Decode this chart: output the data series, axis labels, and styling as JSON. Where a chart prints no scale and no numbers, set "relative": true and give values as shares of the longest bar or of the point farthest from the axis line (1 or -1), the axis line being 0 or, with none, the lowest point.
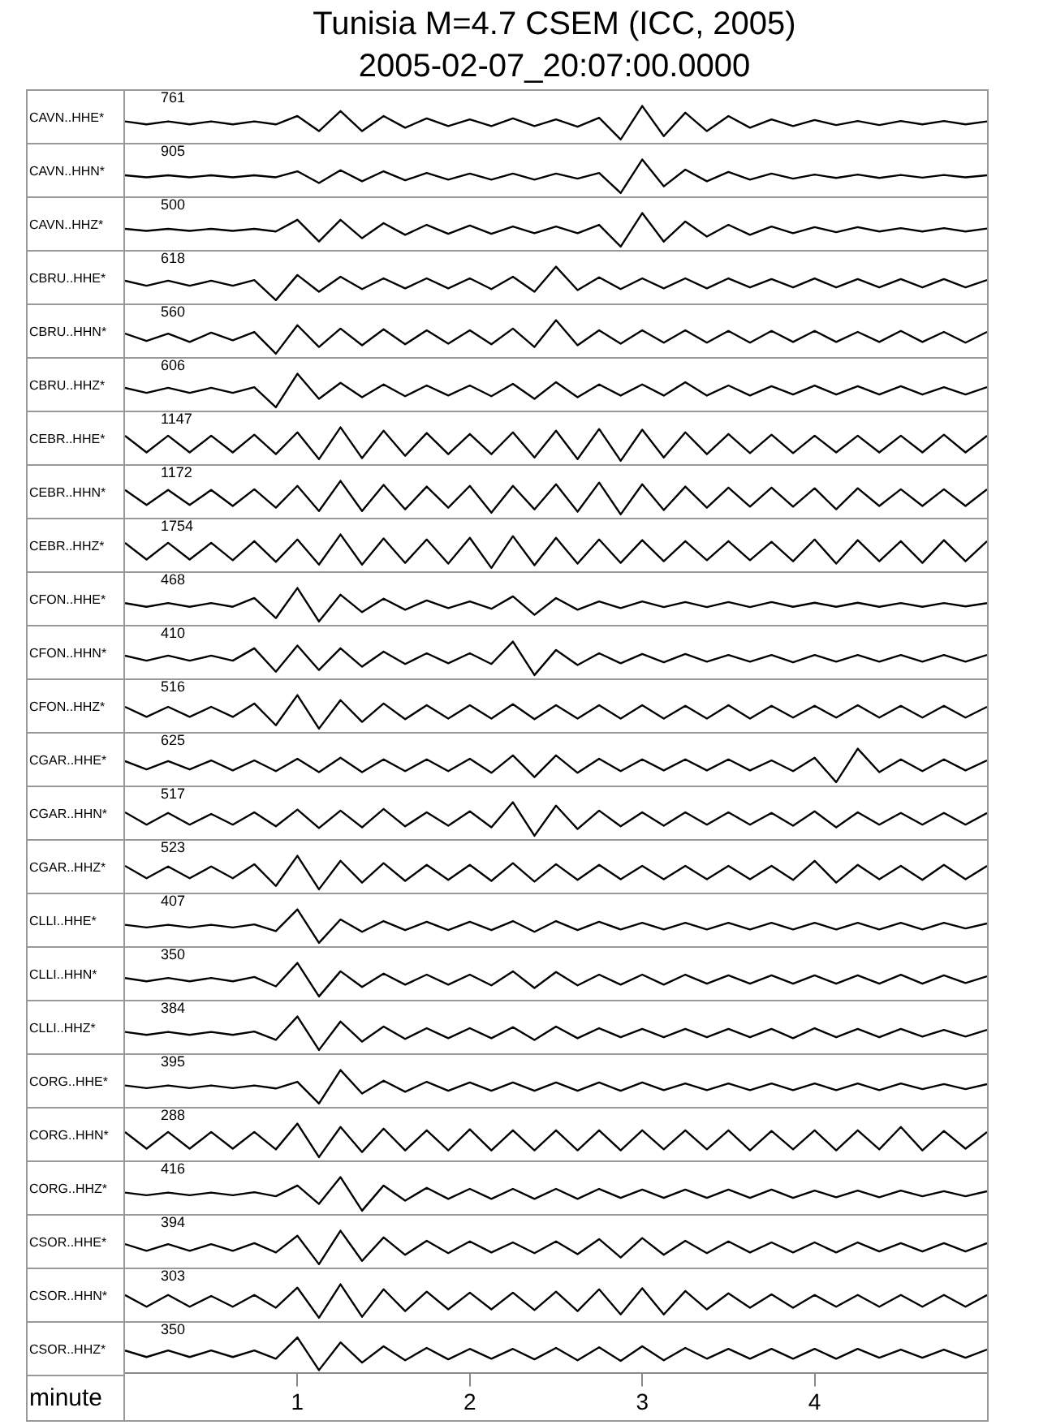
{
  "chart_data": [
    {
      "type": "line",
      "title": "Tunisia M=4.7 CSEM (ICC, 2005)",
      "subtitle": "2005-02-07_20:07:00.0000",
      "ylabel": "CAVN..HHE*",
      "annotations": [
        "761"
      ],
      "relative": true,
      "tick_labels": false,
      "color": "#000000",
      "categories": [
        null,
        null,
        null,
        null,
        null,
        null,
        null,
        null,
        null,
        null,
        null,
        null,
        null,
        null,
        null,
        null,
        null,
        null,
        null,
        null,
        null,
        null,
        null,
        null,
        null,
        null,
        null,
        null,
        null,
        null,
        null,
        null,
        null,
        null,
        null,
        null,
        null,
        null,
        null,
        null,
        null
      ],
      "values": [
        0.54,
        0.45,
        0.54,
        0.45,
        0.54,
        0.45,
        0.54,
        0.45,
        0.7,
        0.25,
        0.85,
        0.25,
        0.7,
        0.35,
        0.63,
        0.4,
        0.6,
        0.4,
        0.63,
        0.4,
        0.6,
        0.38,
        0.65,
        0,
        1,
        0.1,
        0.8,
        0.25,
        0.7,
        0.35,
        0.6,
        0.4,
        0.58,
        0.43,
        0.55,
        0.43,
        0.55,
        0.45,
        0.55,
        0.45,
        0.54
      ]
    },
    {
      "type": "line",
      "ylabel": "CAVN..HHN*",
      "annotations": [
        "905"
      ],
      "relative": true,
      "tick_labels": false,
      "color": "#000000",
      "categories": [
        null,
        null,
        null,
        null,
        null,
        null,
        null,
        null,
        null,
        null,
        null,
        null,
        null,
        null,
        null,
        null,
        null,
        null,
        null,
        null,
        null,
        null,
        null,
        null,
        null,
        null,
        null,
        null,
        null,
        null,
        null,
        null,
        null,
        null,
        null,
        null,
        null,
        null,
        null,
        null,
        null
      ],
      "values": [
        0.53,
        0.47,
        0.53,
        0.47,
        0.53,
        0.47,
        0.53,
        0.47,
        0.65,
        0.3,
        0.68,
        0.35,
        0.65,
        0.38,
        0.6,
        0.4,
        0.58,
        0.4,
        0.58,
        0.4,
        0.58,
        0.43,
        0.6,
        0,
        1,
        0.2,
        0.7,
        0.35,
        0.63,
        0.4,
        0.58,
        0.43,
        0.55,
        0.45,
        0.55,
        0.45,
        0.54,
        0.46,
        0.54,
        0.47,
        0.53
      ]
    },
    {
      "type": "line",
      "ylabel": "CAVN..HHZ*",
      "annotations": [
        "500"
      ],
      "relative": true,
      "tick_labels": false,
      "color": "#000000",
      "categories": [
        null,
        null,
        null,
        null,
        null,
        null,
        null,
        null,
        null,
        null,
        null,
        null,
        null,
        null,
        null,
        null,
        null,
        null,
        null,
        null,
        null,
        null,
        null,
        null,
        null,
        null,
        null,
        null,
        null,
        null,
        null,
        null,
        null,
        null,
        null,
        null,
        null,
        null,
        null,
        null,
        null
      ],
      "values": [
        0.53,
        0.47,
        0.53,
        0.47,
        0.53,
        0.47,
        0.53,
        0.45,
        0.8,
        0.15,
        0.8,
        0.25,
        0.7,
        0.35,
        0.65,
        0.38,
        0.63,
        0.38,
        0.6,
        0.4,
        0.6,
        0.4,
        0.65,
        0,
        1,
        0.15,
        0.75,
        0.3,
        0.65,
        0.35,
        0.6,
        0.4,
        0.58,
        0.43,
        0.58,
        0.45,
        0.55,
        0.45,
        0.55,
        0.45,
        0.54
      ]
    },
    {
      "type": "line",
      "ylabel": "CBRU..HHE*",
      "annotations": [
        "618"
      ],
      "relative": true,
      "tick_labels": false,
      "color": "#000000",
      "categories": [
        null,
        null,
        null,
        null,
        null,
        null,
        null,
        null,
        null,
        null,
        null,
        null,
        null,
        null,
        null,
        null,
        null,
        null,
        null,
        null,
        null,
        null,
        null,
        null,
        null,
        null,
        null,
        null,
        null,
        null,
        null,
        null,
        null,
        null,
        null,
        null,
        null,
        null,
        null,
        null,
        null
      ],
      "values": [
        0.58,
        0.43,
        0.58,
        0.43,
        0.58,
        0.43,
        0.6,
        0,
        0.75,
        0.25,
        0.7,
        0.33,
        0.65,
        0.35,
        0.65,
        0.35,
        0.65,
        0.33,
        0.7,
        0.25,
        1,
        0.3,
        0.68,
        0.33,
        0.65,
        0.35,
        0.65,
        0.35,
        0.65,
        0.38,
        0.63,
        0.38,
        0.65,
        0.38,
        0.63,
        0.38,
        0.63,
        0.38,
        0.63,
        0.38,
        0.6
      ]
    },
    {
      "type": "line",
      "ylabel": "CBRU..HHN*",
      "annotations": [
        "560"
      ],
      "relative": true,
      "tick_labels": false,
      "color": "#000000",
      "categories": [
        null,
        null,
        null,
        null,
        null,
        null,
        null,
        null,
        null,
        null,
        null,
        null,
        null,
        null,
        null,
        null,
        null,
        null,
        null,
        null,
        null,
        null,
        null,
        null,
        null,
        null,
        null,
        null,
        null,
        null,
        null,
        null,
        null,
        null,
        null,
        null,
        null,
        null,
        null,
        null,
        null
      ],
      "values": [
        0.6,
        0.38,
        0.6,
        0.35,
        0.63,
        0.4,
        0.65,
        0,
        0.85,
        0.2,
        0.75,
        0.25,
        0.73,
        0.28,
        0.7,
        0.3,
        0.7,
        0.28,
        0.75,
        0.2,
        1,
        0.25,
        0.7,
        0.3,
        0.7,
        0.33,
        0.7,
        0.33,
        0.68,
        0.33,
        0.68,
        0.35,
        0.68,
        0.35,
        0.65,
        0.35,
        0.68,
        0.35,
        0.65,
        0.33,
        0.65
      ]
    },
    {
      "type": "line",
      "ylabel": "CBRU..HHZ*",
      "annotations": [
        "606"
      ],
      "relative": true,
      "tick_labels": false,
      "color": "#000000",
      "categories": [
        null,
        null,
        null,
        null,
        null,
        null,
        null,
        null,
        null,
        null,
        null,
        null,
        null,
        null,
        null,
        null,
        null,
        null,
        null,
        null,
        null,
        null,
        null,
        null,
        null,
        null,
        null,
        null,
        null,
        null,
        null,
        null,
        null,
        null,
        null,
        null,
        null,
        null,
        null,
        null,
        null
      ],
      "values": [
        0.58,
        0.43,
        0.58,
        0.43,
        0.58,
        0.43,
        0.6,
        0,
        1,
        0.25,
        0.73,
        0.3,
        0.68,
        0.33,
        0.65,
        0.35,
        0.65,
        0.33,
        0.7,
        0.25,
        0.75,
        0.3,
        0.68,
        0.35,
        0.68,
        0.35,
        0.75,
        0.35,
        0.65,
        0.35,
        0.63,
        0.38,
        0.65,
        0.38,
        0.63,
        0.38,
        0.63,
        0.38,
        0.6,
        0.38,
        0.6
      ]
    },
    {
      "type": "line",
      "ylabel": "CEBR..HHE*",
      "annotations": [
        "1147"
      ],
      "relative": true,
      "tick_labels": false,
      "color": "#000000",
      "categories": [
        null,
        null,
        null,
        null,
        null,
        null,
        null,
        null,
        null,
        null,
        null,
        null,
        null,
        null,
        null,
        null,
        null,
        null,
        null,
        null,
        null,
        null,
        null,
        null,
        null,
        null,
        null,
        null,
        null,
        null,
        null,
        null,
        null,
        null,
        null,
        null,
        null,
        null,
        null,
        null,
        null
      ],
      "values": [
        0.75,
        0.25,
        0.75,
        0.25,
        0.75,
        0.25,
        0.78,
        0.2,
        0.85,
        0.05,
        1,
        0.08,
        0.9,
        0.15,
        0.83,
        0.2,
        0.8,
        0.2,
        0.85,
        0.1,
        0.9,
        0.05,
        0.95,
        0,
        0.93,
        0.1,
        0.85,
        0.2,
        0.8,
        0.23,
        0.78,
        0.23,
        0.75,
        0.25,
        0.75,
        0.25,
        0.75,
        0.25,
        0.78,
        0.25,
        0.75
      ]
    },
    {
      "type": "line",
      "ylabel": "CEBR..HHN*",
      "annotations": [
        "1172"
      ],
      "relative": true,
      "tick_labels": false,
      "color": "#000000",
      "categories": [
        null,
        null,
        null,
        null,
        null,
        null,
        null,
        null,
        null,
        null,
        null,
        null,
        null,
        null,
        null,
        null,
        null,
        null,
        null,
        null,
        null,
        null,
        null,
        null,
        null,
        null,
        null,
        null,
        null,
        null,
        null,
        null,
        null,
        null,
        null,
        null,
        null,
        null,
        null,
        null,
        null
      ],
      "values": [
        0.73,
        0.28,
        0.73,
        0.28,
        0.73,
        0.25,
        0.75,
        0.2,
        0.85,
        0.1,
        1,
        0.1,
        0.88,
        0.15,
        0.83,
        0.2,
        0.85,
        0.05,
        0.85,
        0.15,
        0.9,
        0.08,
        0.95,
        0,
        0.9,
        0.13,
        0.83,
        0.2,
        0.8,
        0.23,
        0.8,
        0.23,
        0.78,
        0.15,
        0.78,
        0.25,
        0.75,
        0.25,
        0.75,
        0.25,
        0.75
      ]
    },
    {
      "type": "line",
      "ylabel": "CEBR..HHZ*",
      "annotations": [
        "1754"
      ],
      "relative": true,
      "tick_labels": false,
      "color": "#000000",
      "categories": [
        null,
        null,
        null,
        null,
        null,
        null,
        null,
        null,
        null,
        null,
        null,
        null,
        null,
        null,
        null,
        null,
        null,
        null,
        null,
        null,
        null,
        null,
        null,
        null,
        null,
        null,
        null,
        null,
        null,
        null,
        null,
        null,
        null,
        null,
        null,
        null,
        null,
        null,
        null,
        null,
        null
      ],
      "values": [
        0.75,
        0.25,
        0.75,
        0.25,
        0.75,
        0.23,
        0.8,
        0.18,
        0.85,
        0.1,
        1,
        0.1,
        0.88,
        0.15,
        0.85,
        0.13,
        0.9,
        0,
        0.95,
        0.08,
        0.9,
        0.13,
        0.85,
        0.15,
        0.83,
        0.2,
        0.8,
        0.23,
        0.8,
        0.23,
        0.78,
        0.2,
        0.85,
        0.13,
        0.83,
        0.2,
        0.8,
        0.15,
        0.83,
        0.2,
        0.8
      ]
    },
    {
      "type": "line",
      "ylabel": "CFON..HHE*",
      "annotations": [
        "468"
      ],
      "relative": true,
      "tick_labels": false,
      "color": "#000000",
      "categories": [
        null,
        null,
        null,
        null,
        null,
        null,
        null,
        null,
        null,
        null,
        null,
        null,
        null,
        null,
        null,
        null,
        null,
        null,
        null,
        null,
        null,
        null,
        null,
        null,
        null,
        null,
        null,
        null,
        null,
        null,
        null,
        null,
        null,
        null,
        null,
        null,
        null,
        null,
        null,
        null,
        null
      ],
      "values": [
        0.55,
        0.44,
        0.55,
        0.44,
        0.55,
        0.44,
        0.7,
        0.1,
        1,
        0,
        0.8,
        0.28,
        0.68,
        0.35,
        0.63,
        0.4,
        0.6,
        0.38,
        0.75,
        0.2,
        0.7,
        0.35,
        0.6,
        0.4,
        0.6,
        0.43,
        0.58,
        0.43,
        0.58,
        0.43,
        0.58,
        0.44,
        0.56,
        0.44,
        0.56,
        0.44,
        0.55,
        0.44,
        0.55,
        0.45,
        0.55
      ]
    },
    {
      "type": "line",
      "ylabel": "CFON..HHN*",
      "annotations": [
        "410"
      ],
      "relative": true,
      "tick_labels": false,
      "color": "#000000",
      "categories": [
        null,
        null,
        null,
        null,
        null,
        null,
        null,
        null,
        null,
        null,
        null,
        null,
        null,
        null,
        null,
        null,
        null,
        null,
        null,
        null,
        null,
        null,
        null,
        null,
        null,
        null,
        null,
        null,
        null,
        null,
        null,
        null,
        null,
        null,
        null,
        null,
        null,
        null,
        null,
        null,
        null
      ],
      "values": [
        0.58,
        0.43,
        0.58,
        0.43,
        0.58,
        0.43,
        0.8,
        0.1,
        0.88,
        0.15,
        0.8,
        0.25,
        0.7,
        0.33,
        0.65,
        0.35,
        0.65,
        0.33,
        1,
        0,
        0.75,
        0.3,
        0.65,
        0.35,
        0.63,
        0.38,
        0.63,
        0.4,
        0.6,
        0.4,
        0.6,
        0.38,
        0.6,
        0.4,
        0.6,
        0.4,
        0.6,
        0.4,
        0.6,
        0.4,
        0.6
      ]
    },
    {
      "type": "line",
      "ylabel": "CFON..HHZ*",
      "annotations": [
        "516"
      ],
      "relative": true,
      "tick_labels": false,
      "color": "#000000",
      "categories": [
        null,
        null,
        null,
        null,
        null,
        null,
        null,
        null,
        null,
        null,
        null,
        null,
        null,
        null,
        null,
        null,
        null,
        null,
        null,
        null,
        null,
        null,
        null,
        null,
        null,
        null,
        null,
        null,
        null,
        null,
        null,
        null,
        null,
        null,
        null,
        null,
        null,
        null,
        null,
        null,
        null
      ],
      "values": [
        0.65,
        0.35,
        0.65,
        0.35,
        0.65,
        0.35,
        0.75,
        0.1,
        1,
        0,
        0.85,
        0.2,
        0.75,
        0.28,
        0.7,
        0.3,
        0.7,
        0.3,
        0.73,
        0.28,
        0.7,
        0.3,
        0.7,
        0.3,
        0.7,
        0.3,
        0.68,
        0.3,
        0.7,
        0.3,
        0.68,
        0.33,
        0.68,
        0.33,
        0.7,
        0.33,
        0.68,
        0.33,
        0.68,
        0.33,
        0.65
      ]
    },
    {
      "type": "line",
      "ylabel": "CGAR..HHE*",
      "annotations": [
        "625"
      ],
      "relative": true,
      "tick_labels": false,
      "color": "#000000",
      "categories": [
        null,
        null,
        null,
        null,
        null,
        null,
        null,
        null,
        null,
        null,
        null,
        null,
        null,
        null,
        null,
        null,
        null,
        null,
        null,
        null,
        null,
        null,
        null,
        null,
        null,
        null,
        null,
        null,
        null,
        null,
        null,
        null,
        null,
        null,
        null,
        null,
        null,
        null,
        null,
        null,
        null
      ],
      "values": [
        0.63,
        0.38,
        0.63,
        0.38,
        0.65,
        0.35,
        0.65,
        0.33,
        0.7,
        0.3,
        0.73,
        0.3,
        0.68,
        0.33,
        0.68,
        0.33,
        0.7,
        0.28,
        0.8,
        0.15,
        0.8,
        0.28,
        0.7,
        0.33,
        0.68,
        0.35,
        0.68,
        0.35,
        0.68,
        0.35,
        0.65,
        0.33,
        0.73,
        0,
        1,
        0.3,
        0.68,
        0.33,
        0.68,
        0.35,
        0.65
      ]
    },
    {
      "type": "line",
      "ylabel": "CGAR..HHN*",
      "annotations": [
        "517"
      ],
      "relative": true,
      "tick_labels": false,
      "color": "#000000",
      "categories": [
        null,
        null,
        null,
        null,
        null,
        null,
        null,
        null,
        null,
        null,
        null,
        null,
        null,
        null,
        null,
        null,
        null,
        null,
        null,
        null,
        null,
        null,
        null,
        null,
        null,
        null,
        null,
        null,
        null,
        null,
        null,
        null,
        null,
        null,
        null,
        null,
        null,
        null,
        null,
        null,
        null
      ],
      "values": [
        0.7,
        0.33,
        0.68,
        0.33,
        0.65,
        0.33,
        0.7,
        0.28,
        0.78,
        0.23,
        0.75,
        0.25,
        0.8,
        0.28,
        0.7,
        0.3,
        0.73,
        0.25,
        1,
        0,
        0.9,
        0.2,
        0.75,
        0.28,
        0.7,
        0.3,
        0.7,
        0.33,
        0.7,
        0.33,
        0.68,
        0.3,
        0.73,
        0.25,
        0.7,
        0.33,
        0.68,
        0.33,
        0.68,
        0.33,
        0.68
      ]
    },
    {
      "type": "line",
      "ylabel": "CGAR..HHZ*",
      "annotations": [
        "523"
      ],
      "relative": true,
      "tick_labels": false,
      "color": "#000000",
      "categories": [
        null,
        null,
        null,
        null,
        null,
        null,
        null,
        null,
        null,
        null,
        null,
        null,
        null,
        null,
        null,
        null,
        null,
        null,
        null,
        null,
        null,
        null,
        null,
        null,
        null,
        null,
        null,
        null,
        null,
        null,
        null,
        null,
        null,
        null,
        null,
        null,
        null,
        null,
        null,
        null,
        null
      ],
      "values": [
        0.7,
        0.33,
        0.68,
        0.33,
        0.68,
        0.33,
        0.75,
        0.1,
        1,
        0,
        0.85,
        0.2,
        0.78,
        0.25,
        0.73,
        0.28,
        0.73,
        0.25,
        0.78,
        0.23,
        0.75,
        0.28,
        0.73,
        0.3,
        0.7,
        0.3,
        0.7,
        0.3,
        0.7,
        0.3,
        0.7,
        0.28,
        0.85,
        0.2,
        0.73,
        0.3,
        0.7,
        0.28,
        0.73,
        0.3,
        0.7
      ]
    },
    {
      "type": "line",
      "ylabel": "CLLI..HHE*",
      "annotations": [
        "407"
      ],
      "relative": true,
      "tick_labels": false,
      "color": "#000000",
      "categories": [
        null,
        null,
        null,
        null,
        null,
        null,
        null,
        null,
        null,
        null,
        null,
        null,
        null,
        null,
        null,
        null,
        null,
        null,
        null,
        null,
        null,
        null,
        null,
        null,
        null,
        null,
        null,
        null,
        null,
        null,
        null,
        null,
        null,
        null,
        null,
        null,
        null,
        null,
        null,
        null,
        null
      ],
      "values": [
        0.54,
        0.46,
        0.54,
        0.46,
        0.54,
        0.46,
        0.55,
        0.35,
        1,
        0,
        0.7,
        0.33,
        0.65,
        0.38,
        0.63,
        0.38,
        0.63,
        0.38,
        0.65,
        0.33,
        0.65,
        0.38,
        0.63,
        0.4,
        0.6,
        0.4,
        0.6,
        0.4,
        0.6,
        0.4,
        0.6,
        0.4,
        0.6,
        0.4,
        0.6,
        0.4,
        0.6,
        0.4,
        0.6,
        0.43,
        0.58
      ]
    },
    {
      "type": "line",
      "ylabel": "CLLI..HHN*",
      "annotations": [
        "350"
      ],
      "relative": true,
      "tick_labels": false,
      "color": "#000000",
      "categories": [
        null,
        null,
        null,
        null,
        null,
        null,
        null,
        null,
        null,
        null,
        null,
        null,
        null,
        null,
        null,
        null,
        null,
        null,
        null,
        null,
        null,
        null,
        null,
        null,
        null,
        null,
        null,
        null,
        null,
        null,
        null,
        null,
        null,
        null,
        null,
        null,
        null,
        null,
        null,
        null,
        null
      ],
      "values": [
        0.55,
        0.45,
        0.55,
        0.45,
        0.55,
        0.45,
        0.58,
        0.3,
        1,
        0,
        0.75,
        0.28,
        0.68,
        0.35,
        0.65,
        0.35,
        0.65,
        0.33,
        0.75,
        0.25,
        0.73,
        0.33,
        0.65,
        0.35,
        0.65,
        0.35,
        0.65,
        0.38,
        0.63,
        0.38,
        0.63,
        0.38,
        0.63,
        0.38,
        0.63,
        0.38,
        0.65,
        0.38,
        0.63,
        0.4,
        0.6
      ]
    },
    {
      "type": "line",
      "ylabel": "CLLI..HHZ*",
      "annotations": [
        "384"
      ],
      "relative": true,
      "tick_labels": false,
      "color": "#000000",
      "categories": [
        null,
        null,
        null,
        null,
        null,
        null,
        null,
        null,
        null,
        null,
        null,
        null,
        null,
        null,
        null,
        null,
        null,
        null,
        null,
        null,
        null,
        null,
        null,
        null,
        null,
        null,
        null,
        null,
        null,
        null,
        null,
        null,
        null,
        null,
        null,
        null,
        null,
        null,
        null,
        null,
        null
      ],
      "values": [
        0.54,
        0.45,
        0.54,
        0.45,
        0.54,
        0.45,
        0.55,
        0.3,
        1,
        0,
        0.85,
        0.25,
        0.7,
        0.33,
        0.65,
        0.35,
        0.65,
        0.35,
        0.68,
        0.3,
        0.7,
        0.35,
        0.65,
        0.38,
        0.63,
        0.38,
        0.63,
        0.38,
        0.63,
        0.38,
        0.63,
        0.35,
        0.65,
        0.38,
        0.63,
        0.38,
        0.63,
        0.4,
        0.6,
        0.4,
        0.6
      ]
    },
    {
      "type": "line",
      "ylabel": "CORG..HHE*",
      "annotations": [
        "395"
      ],
      "relative": true,
      "tick_labels": false,
      "color": "#000000",
      "categories": [
        null,
        null,
        null,
        null,
        null,
        null,
        null,
        null,
        null,
        null,
        null,
        null,
        null,
        null,
        null,
        null,
        null,
        null,
        null,
        null,
        null,
        null,
        null,
        null,
        null,
        null,
        null,
        null,
        null,
        null,
        null,
        null,
        null,
        null,
        null,
        null,
        null,
        null,
        null,
        null,
        null
      ],
      "values": [
        0.54,
        0.46,
        0.54,
        0.46,
        0.54,
        0.46,
        0.54,
        0.45,
        0.65,
        0,
        1,
        0.3,
        0.68,
        0.35,
        0.65,
        0.38,
        0.63,
        0.38,
        0.63,
        0.38,
        0.63,
        0.38,
        0.63,
        0.38,
        0.63,
        0.4,
        0.6,
        0.4,
        0.6,
        0.4,
        0.6,
        0.4,
        0.6,
        0.4,
        0.6,
        0.4,
        0.6,
        0.43,
        0.58,
        0.43,
        0.58
      ]
    },
    {
      "type": "line",
      "ylabel": "CORG..HHN*",
      "annotations": [
        "288"
      ],
      "relative": true,
      "tick_labels": false,
      "color": "#000000",
      "categories": [
        null,
        null,
        null,
        null,
        null,
        null,
        null,
        null,
        null,
        null,
        null,
        null,
        null,
        null,
        null,
        null,
        null,
        null,
        null,
        null,
        null,
        null,
        null,
        null,
        null,
        null,
        null,
        null,
        null,
        null,
        null,
        null,
        null,
        null,
        null,
        null,
        null,
        null,
        null,
        null,
        null
      ],
      "values": [
        0.75,
        0.25,
        0.75,
        0.25,
        0.75,
        0.25,
        0.75,
        0.23,
        1,
        0,
        0.9,
        0.15,
        0.85,
        0.2,
        0.8,
        0.2,
        0.83,
        0.2,
        0.8,
        0.2,
        0.8,
        0.2,
        0.8,
        0.2,
        0.8,
        0.23,
        0.8,
        0.23,
        0.8,
        0.2,
        0.78,
        0.23,
        0.8,
        0.2,
        0.8,
        0.23,
        0.9,
        0.2,
        0.78,
        0.25,
        0.75
      ]
    },
    {
      "type": "line",
      "ylabel": "CORG..HHZ*",
      "annotations": [
        "416"
      ],
      "relative": true,
      "tick_labels": false,
      "color": "#000000",
      "categories": [
        null,
        null,
        null,
        null,
        null,
        null,
        null,
        null,
        null,
        null,
        null,
        null,
        null,
        null,
        null,
        null,
        null,
        null,
        null,
        null,
        null,
        null,
        null,
        null,
        null,
        null,
        null,
        null,
        null,
        null,
        null,
        null,
        null,
        null,
        null,
        null,
        null,
        null,
        null,
        null,
        null
      ],
      "values": [
        0.54,
        0.46,
        0.54,
        0.46,
        0.54,
        0.46,
        0.55,
        0.43,
        0.75,
        0.2,
        1,
        0,
        0.75,
        0.3,
        0.68,
        0.35,
        0.65,
        0.35,
        0.65,
        0.35,
        0.65,
        0.35,
        0.65,
        0.38,
        0.63,
        0.38,
        0.63,
        0.38,
        0.63,
        0.38,
        0.63,
        0.38,
        0.6,
        0.4,
        0.6,
        0.4,
        0.6,
        0.43,
        0.58,
        0.43,
        0.58
      ]
    },
    {
      "type": "line",
      "ylabel": "CSOR..HHE*",
      "annotations": [
        "394"
      ],
      "relative": true,
      "tick_labels": false,
      "color": "#000000",
      "categories": [
        null,
        null,
        null,
        null,
        null,
        null,
        null,
        null,
        null,
        null,
        null,
        null,
        null,
        null,
        null,
        null,
        null,
        null,
        null,
        null,
        null,
        null,
        null,
        null,
        null,
        null,
        null,
        null,
        null,
        null,
        null,
        null,
        null,
        null,
        null,
        null,
        null,
        null,
        null,
        null,
        null
      ],
      "values": [
        0.6,
        0.4,
        0.6,
        0.4,
        0.6,
        0.4,
        0.63,
        0.35,
        0.85,
        0,
        1,
        0.1,
        0.8,
        0.28,
        0.7,
        0.33,
        0.68,
        0.35,
        0.65,
        0.33,
        0.68,
        0.3,
        0.75,
        0.2,
        0.78,
        0.28,
        0.7,
        0.33,
        0.68,
        0.35,
        0.65,
        0.35,
        0.65,
        0.35,
        0.65,
        0.38,
        0.63,
        0.38,
        0.63,
        0.38,
        0.63
      ]
    },
    {
      "type": "line",
      "ylabel": "CSOR..HHN*",
      "annotations": [
        "303"
      ],
      "relative": true,
      "tick_labels": false,
      "color": "#000000",
      "categories": [
        null,
        null,
        null,
        null,
        null,
        null,
        null,
        null,
        null,
        null,
        null,
        null,
        null,
        null,
        null,
        null,
        null,
        null,
        null,
        null,
        null,
        null,
        null,
        null,
        null,
        null,
        null,
        null,
        null,
        null,
        null,
        null,
        null,
        null,
        null,
        null,
        null,
        null,
        null,
        null,
        null
      ],
      "values": [
        0.68,
        0.33,
        0.68,
        0.33,
        0.65,
        0.33,
        0.68,
        0.3,
        0.9,
        0,
        1,
        0.03,
        0.85,
        0.2,
        0.78,
        0.25,
        0.75,
        0.25,
        0.75,
        0.23,
        0.78,
        0.2,
        0.85,
        0.1,
        0.88,
        0.1,
        0.8,
        0.25,
        0.73,
        0.3,
        0.7,
        0.3,
        0.68,
        0.33,
        0.68,
        0.33,
        0.68,
        0.33,
        0.68,
        0.33,
        0.68
      ]
    },
    {
      "type": "line",
      "ylabel": "CSOR..HHZ*",
      "xlabel": "minute",
      "annotations": [
        "350"
      ],
      "relative": true,
      "tick_labels": "x",
      "color": "#000000",
      "xlim": [
        0,
        5
      ],
      "xticks": [
        1,
        2,
        3,
        4
      ],
      "x": [
        0,
        0.125,
        0.25,
        0.375,
        0.5,
        0.625,
        0.75,
        0.875,
        1,
        1.125,
        1.25,
        1.375,
        1.5,
        1.625,
        1.75,
        1.875,
        2,
        2.125,
        2.25,
        2.375,
        2.5,
        2.625,
        2.75,
        2.875,
        3,
        3.125,
        3.25,
        3.375,
        3.5,
        3.625,
        3.75,
        3.875,
        4,
        4.125,
        4.25,
        4.375,
        4.5,
        4.625,
        4.75,
        4.875,
        5
      ],
      "values": [
        0.6,
        0.4,
        0.6,
        0.4,
        0.6,
        0.4,
        0.6,
        0.35,
        1,
        0,
        0.85,
        0.23,
        0.73,
        0.3,
        0.68,
        0.33,
        0.65,
        0.35,
        0.65,
        0.33,
        0.68,
        0.3,
        0.7,
        0.28,
        0.73,
        0.3,
        0.68,
        0.35,
        0.65,
        0.35,
        0.65,
        0.35,
        0.65,
        0.35,
        0.65,
        0.38,
        0.63,
        0.38,
        0.63,
        0.38,
        0.63
      ]
    }
  ]
}
